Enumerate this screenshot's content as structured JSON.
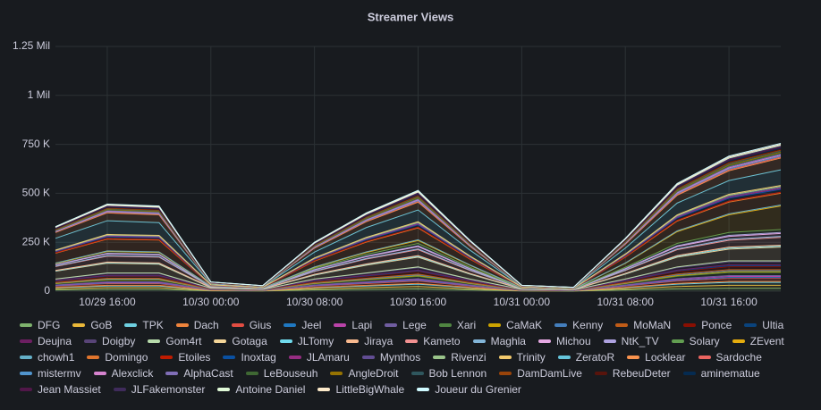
{
  "chart_data": {
    "type": "stacked_area",
    "title": "Streamer Views",
    "x": [
      "10/29 12:00",
      "10/29 16:00",
      "10/29 20:00",
      "10/30 00:00",
      "10/30 04:00",
      "10/30 08:00",
      "10/30 12:00",
      "10/30 16:00",
      "10/30 20:00",
      "10/31 00:00",
      "10/31 04:00",
      "10/31 08:00",
      "10/31 12:00",
      "10/31 16:00",
      "10/31 20:00"
    ],
    "xlim": [
      "10/29 12:00",
      "10/31 20:00"
    ],
    "xticks": [
      "10/29 16:00",
      "10/30 00:00",
      "10/30 08:00",
      "10/30 16:00",
      "10/31 00:00",
      "10/31 08:00",
      "10/31 16:00"
    ],
    "ylim": [
      0,
      1250000
    ],
    "yticks": [
      0,
      {
        "value": 250000,
        "label": "250 K"
      },
      {
        "value": 500000,
        "label": "500 K"
      },
      {
        "value": 750000,
        "label": "750 K"
      },
      {
        "value": 1000000,
        "label": "1 Mil"
      },
      {
        "value": 1250000,
        "label": "1.25 Mil"
      }
    ],
    "grid": true,
    "series": [
      {
        "name": "DFG",
        "color": "#7eb26d",
        "values": [
          6000,
          9000,
          9000,
          1500,
          900,
          6000,
          9000,
          12000,
          6000,
          900,
          600,
          6000,
          12000,
          15000,
          15000
        ]
      },
      {
        "name": "GoB",
        "color": "#eab839",
        "values": [
          6000,
          9000,
          9000,
          1500,
          900,
          6000,
          9000,
          12000,
          6000,
          900,
          600,
          6000,
          12000,
          15000,
          15000
        ]
      },
      {
        "name": "TPK",
        "color": "#6ed0e0",
        "values": [
          6000,
          9000,
          9000,
          1500,
          900,
          6000,
          9000,
          12000,
          6000,
          900,
          600,
          6000,
          12000,
          15000,
          15000
        ]
      },
      {
        "name": "Dach",
        "color": "#ef843c",
        "values": [
          2000,
          3000,
          3000,
          500,
          300,
          2000,
          3000,
          4000,
          2000,
          300,
          200,
          2000,
          4000,
          5000,
          5000
        ]
      },
      {
        "name": "Gius",
        "color": "#e24d42",
        "values": [
          6000,
          9000,
          9000,
          1500,
          900,
          6000,
          9000,
          12000,
          6000,
          900,
          600,
          6000,
          12000,
          15000,
          15000
        ]
      },
      {
        "name": "Jeel",
        "color": "#1f78c1",
        "values": [
          2000,
          3000,
          3000,
          500,
          300,
          2000,
          3000,
          4000,
          2000,
          300,
          200,
          2000,
          4000,
          5000,
          5000
        ]
      },
      {
        "name": "Lapi",
        "color": "#ba43a9",
        "values": [
          2000,
          3000,
          3000,
          500,
          300,
          2000,
          3000,
          4000,
          2000,
          300,
          200,
          2000,
          4000,
          5000,
          5000
        ]
      },
      {
        "name": "Lege",
        "color": "#705da0",
        "values": [
          2000,
          3000,
          3000,
          500,
          300,
          2000,
          3000,
          4000,
          2000,
          300,
          200,
          2000,
          4000,
          5000,
          5000
        ]
      },
      {
        "name": "Xari",
        "color": "#508642",
        "values": [
          6000,
          9000,
          9000,
          1500,
          900,
          6000,
          9000,
          12000,
          6000,
          900,
          600,
          6000,
          12000,
          15000,
          15000
        ]
      },
      {
        "name": "CaMaK",
        "color": "#cca300",
        "values": [
          2000,
          3000,
          3000,
          500,
          300,
          2000,
          3000,
          4000,
          2000,
          300,
          200,
          2000,
          4000,
          5000,
          5000
        ]
      },
      {
        "name": "Kenny",
        "color": "#447ebc",
        "values": [
          2000,
          3000,
          3000,
          500,
          300,
          2000,
          3000,
          4000,
          2000,
          300,
          200,
          2000,
          4000,
          5000,
          5000
        ]
      },
      {
        "name": "MoMaN",
        "color": "#c15c17",
        "values": [
          2000,
          3000,
          3000,
          500,
          300,
          2000,
          3000,
          4000,
          2000,
          300,
          200,
          2000,
          4000,
          5000,
          5000
        ]
      },
      {
        "name": "Ponce",
        "color": "#890f02",
        "values": [
          6000,
          9000,
          9000,
          1500,
          900,
          6000,
          9000,
          12000,
          6000,
          900,
          600,
          6000,
          12000,
          15000,
          15000
        ]
      },
      {
        "name": "Ultia",
        "color": "#0a437c",
        "values": [
          2000,
          3000,
          3000,
          500,
          300,
          2000,
          3000,
          4000,
          2000,
          300,
          200,
          2000,
          4000,
          5000,
          5000
        ]
      },
      {
        "name": "Deujna",
        "color": "#6d1f62",
        "values": [
          2000,
          3000,
          3000,
          500,
          300,
          2000,
          3000,
          4000,
          2000,
          300,
          200,
          2000,
          4000,
          5000,
          5000
        ]
      },
      {
        "name": "Doigby",
        "color": "#584477",
        "values": [
          6000,
          9000,
          9000,
          1500,
          900,
          6000,
          9000,
          12000,
          6000,
          900,
          600,
          6000,
          12000,
          15000,
          15000
        ]
      },
      {
        "name": "Gom4rt",
        "color": "#b7dbab",
        "values": [
          2000,
          3000,
          3000,
          500,
          300,
          2000,
          3000,
          4000,
          2000,
          300,
          200,
          2000,
          4000,
          5000,
          5000
        ]
      },
      {
        "name": "Gotaga",
        "color": "#f4d598",
        "values": [
          40000,
          50000,
          45000,
          3000,
          2000,
          20000,
          40000,
          50000,
          25000,
          2000,
          1000,
          25000,
          50000,
          60000,
          70000
        ]
      },
      {
        "name": "JLTomy",
        "color": "#70dbed",
        "values": [
          2000,
          3000,
          3000,
          500,
          300,
          2000,
          3000,
          4000,
          2000,
          300,
          200,
          2000,
          4000,
          5000,
          5000
        ]
      },
      {
        "name": "Jiraya",
        "color": "#f9ba8f",
        "values": [
          2000,
          3000,
          3000,
          500,
          300,
          2000,
          3000,
          4000,
          2000,
          300,
          200,
          2000,
          4000,
          5000,
          5000
        ]
      },
      {
        "name": "Kameto",
        "color": "#f29191",
        "values": [
          20000,
          30000,
          30000,
          2000,
          1000,
          15000,
          25000,
          30000,
          15000,
          1000,
          1000,
          15000,
          30000,
          35000,
          40000
        ]
      },
      {
        "name": "Maghla",
        "color": "#82b5d8",
        "values": [
          2000,
          3000,
          3000,
          500,
          300,
          2000,
          3000,
          4000,
          2000,
          300,
          200,
          2000,
          4000,
          5000,
          5000
        ]
      },
      {
        "name": "Michou",
        "color": "#e5a8e2",
        "values": [
          6000,
          9000,
          9000,
          1500,
          900,
          6000,
          9000,
          12000,
          6000,
          900,
          600,
          6000,
          12000,
          15000,
          15000
        ]
      },
      {
        "name": "NtK_TV",
        "color": "#aea2e0",
        "values": [
          2000,
          3000,
          3000,
          500,
          300,
          2000,
          3000,
          4000,
          2000,
          300,
          200,
          2000,
          4000,
          5000,
          5000
        ]
      },
      {
        "name": "Solary",
        "color": "#629e51",
        "values": [
          6000,
          9000,
          9000,
          1500,
          900,
          6000,
          9000,
          12000,
          6000,
          900,
          600,
          6000,
          12000,
          15000,
          15000
        ]
      },
      {
        "name": "ZEvent",
        "color": "#e5ac0e",
        "values": [
          0,
          0,
          0,
          0,
          0,
          5000,
          10000,
          15000,
          10000,
          2000,
          1000,
          20000,
          60000,
          90000,
          120000
        ]
      },
      {
        "name": "chowh1",
        "color": "#64b0c8",
        "values": [
          2000,
          3000,
          3000,
          500,
          300,
          2000,
          3000,
          4000,
          2000,
          300,
          200,
          2000,
          4000,
          5000,
          5000
        ]
      },
      {
        "name": "Domingo",
        "color": "#e0752d",
        "values": [
          50000,
          60000,
          60000,
          3000,
          2000,
          30000,
          50000,
          60000,
          30000,
          2000,
          1000,
          30000,
          50000,
          60000,
          60000
        ]
      },
      {
        "name": "Etoiles",
        "color": "#bf1b00",
        "values": [
          2000,
          3000,
          3000,
          500,
          300,
          2000,
          3000,
          4000,
          2000,
          300,
          200,
          2000,
          4000,
          5000,
          5000
        ]
      },
      {
        "name": "Inoxtag",
        "color": "#0a50a1",
        "values": [
          6000,
          9000,
          9000,
          1500,
          900,
          6000,
          9000,
          12000,
          6000,
          900,
          600,
          6000,
          12000,
          15000,
          15000
        ]
      },
      {
        "name": "JLAmaru",
        "color": "#962d82",
        "values": [
          2000,
          3000,
          3000,
          500,
          300,
          2000,
          3000,
          4000,
          2000,
          300,
          200,
          2000,
          4000,
          5000,
          5000
        ]
      },
      {
        "name": "Mynthos",
        "color": "#614d93",
        "values": [
          2000,
          3000,
          3000,
          500,
          300,
          2000,
          3000,
          4000,
          2000,
          300,
          200,
          2000,
          4000,
          5000,
          5000
        ]
      },
      {
        "name": "Rivenzi",
        "color": "#9ac48a",
        "values": [
          2000,
          3000,
          3000,
          500,
          300,
          2000,
          3000,
          4000,
          2000,
          300,
          200,
          2000,
          4000,
          5000,
          5000
        ]
      },
      {
        "name": "Trinity",
        "color": "#f2c96d",
        "values": [
          2000,
          3000,
          3000,
          500,
          300,
          2000,
          3000,
          4000,
          2000,
          300,
          200,
          2000,
          4000,
          5000,
          5000
        ]
      },
      {
        "name": "ZeratoR",
        "color": "#65c5db",
        "values": [
          60000,
          70000,
          65000,
          5000,
          3000,
          30000,
          50000,
          60000,
          30000,
          3000,
          2000,
          30000,
          60000,
          70000,
          80000
        ]
      },
      {
        "name": "Locklear",
        "color": "#f9934e",
        "values": [
          30000,
          40000,
          40000,
          2000,
          1000,
          20000,
          30000,
          40000,
          20000,
          1000,
          1000,
          20000,
          40000,
          50000,
          60000
        ]
      },
      {
        "name": "Sardoche",
        "color": "#ea6460",
        "values": [
          2000,
          3000,
          3000,
          500,
          300,
          2000,
          3000,
          4000,
          2000,
          300,
          200,
          2000,
          4000,
          5000,
          5000
        ]
      },
      {
        "name": "mistermv",
        "color": "#5195ce",
        "values": [
          2000,
          3000,
          3000,
          500,
          300,
          2000,
          3000,
          4000,
          2000,
          300,
          200,
          2000,
          4000,
          5000,
          5000
        ]
      },
      {
        "name": "Alexclick",
        "color": "#d683ce",
        "values": [
          2000,
          3000,
          3000,
          500,
          300,
          2000,
          3000,
          4000,
          2000,
          300,
          200,
          2000,
          4000,
          5000,
          5000
        ]
      },
      {
        "name": "AlphaCast",
        "color": "#806eb7",
        "values": [
          2000,
          3000,
          3000,
          500,
          300,
          2000,
          3000,
          4000,
          2000,
          300,
          200,
          2000,
          4000,
          5000,
          5000
        ]
      },
      {
        "name": "LeBouseuh",
        "color": "#3f6833",
        "values": [
          2000,
          3000,
          3000,
          500,
          300,
          2000,
          3000,
          4000,
          2000,
          300,
          200,
          2000,
          4000,
          5000,
          5000
        ]
      },
      {
        "name": "AngleDroit",
        "color": "#967302",
        "values": [
          2000,
          3000,
          3000,
          500,
          300,
          2000,
          3000,
          4000,
          2000,
          300,
          200,
          2000,
          4000,
          5000,
          5000
        ]
      },
      {
        "name": "Bob Lennon",
        "color": "#2f575e",
        "values": [
          2000,
          3000,
          3000,
          500,
          300,
          2000,
          3000,
          4000,
          2000,
          300,
          200,
          2000,
          4000,
          5000,
          5000
        ]
      },
      {
        "name": "DamDamLive",
        "color": "#99440a",
        "values": [
          2000,
          3000,
          3000,
          500,
          300,
          2000,
          3000,
          4000,
          2000,
          300,
          200,
          2000,
          4000,
          5000,
          5000
        ]
      },
      {
        "name": "RebeuDeter",
        "color": "#58140c",
        "values": [
          2000,
          3000,
          3000,
          500,
          300,
          2000,
          3000,
          4000,
          2000,
          300,
          200,
          2000,
          4000,
          5000,
          5000
        ]
      },
      {
        "name": "aminematue",
        "color": "#052b51",
        "values": [
          2000,
          3000,
          3000,
          500,
          300,
          2000,
          3000,
          4000,
          2000,
          300,
          200,
          2000,
          4000,
          5000,
          5000
        ]
      },
      {
        "name": "Jean Massiet",
        "color": "#511749",
        "values": [
          2000,
          3000,
          3000,
          500,
          300,
          2000,
          3000,
          4000,
          2000,
          300,
          200,
          2000,
          4000,
          5000,
          5000
        ]
      },
      {
        "name": "JLFakemonster",
        "color": "#3f2b5b",
        "values": [
          2000,
          3000,
          3000,
          500,
          300,
          2000,
          3000,
          4000,
          2000,
          300,
          200,
          2000,
          4000,
          5000,
          5000
        ]
      },
      {
        "name": "Antoine Daniel",
        "color": "#e0f9d7",
        "values": [
          2000,
          3000,
          3000,
          500,
          300,
          2000,
          3000,
          4000,
          2000,
          300,
          200,
          2000,
          4000,
          5000,
          5000
        ]
      },
      {
        "name": "LittleBigWhale",
        "color": "#fceaca",
        "values": [
          2000,
          3000,
          3000,
          500,
          300,
          2000,
          3000,
          4000,
          2000,
          300,
          200,
          2000,
          4000,
          5000,
          5000
        ]
      },
      {
        "name": "Joueur du Grenier",
        "color": "#cffaff",
        "values": [
          2000,
          3000,
          3000,
          500,
          300,
          2000,
          3000,
          4000,
          2000,
          300,
          200,
          2000,
          4000,
          5000,
          5000
        ]
      }
    ]
  }
}
